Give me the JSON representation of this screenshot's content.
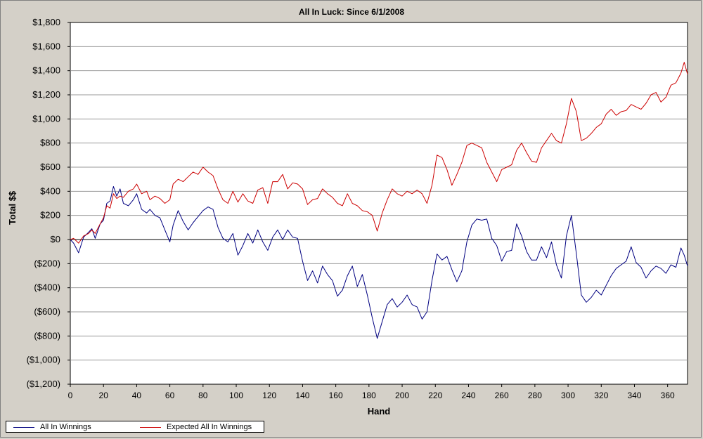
{
  "chart_data": {
    "type": "line",
    "title": "All In Luck: Since 6/1/2008",
    "xlabel": "Hand",
    "ylabel": "Total $$",
    "xlim": [
      0,
      372
    ],
    "ylim": [
      -1200,
      1800
    ],
    "x_ticks": [
      0,
      20,
      40,
      60,
      80,
      100,
      120,
      140,
      160,
      180,
      200,
      220,
      240,
      260,
      280,
      300,
      320,
      340,
      360
    ],
    "y_ticks": [
      1800,
      1600,
      1400,
      1200,
      1000,
      800,
      600,
      400,
      200,
      0,
      -200,
      -400,
      -600,
      -800,
      -1000,
      -1200
    ],
    "y_tick_labels": [
      "$1,800",
      "$1,600",
      "$1,400",
      "$1,200",
      "$1,000",
      "$800",
      "$600",
      "$400",
      "$200",
      "$0",
      "($200)",
      "($400)",
      "($600)",
      "($800)",
      "($1,000)",
      "($1,200)"
    ],
    "grid": true,
    "legend_position": "bottom-left",
    "series": [
      {
        "name": "All In Winnings",
        "color": "#000080",
        "x": [
          0,
          2,
          5,
          8,
          11,
          13,
          15,
          18,
          20,
          22,
          24,
          26,
          28,
          30,
          32,
          35,
          38,
          40,
          43,
          46,
          48,
          51,
          54,
          57,
          60,
          62,
          65,
          68,
          71,
          74,
          77,
          80,
          83,
          86,
          89,
          92,
          95,
          98,
          101,
          104,
          107,
          110,
          113,
          116,
          119,
          122,
          125,
          128,
          131,
          134,
          137,
          140,
          143,
          146,
          149,
          152,
          155,
          158,
          161,
          164,
          167,
          170,
          173,
          176,
          179,
          182,
          185,
          188,
          191,
          194,
          197,
          200,
          203,
          206,
          209,
          212,
          215,
          218,
          221,
          224,
          227,
          230,
          233,
          236,
          239,
          242,
          245,
          248,
          251,
          254,
          257,
          260,
          263,
          266,
          269,
          272,
          275,
          278,
          281,
          284,
          287,
          290,
          293,
          296,
          299,
          302,
          305,
          308,
          311,
          314,
          317,
          320,
          323,
          326,
          329,
          332,
          335,
          338,
          341,
          344,
          347,
          350,
          353,
          356,
          359,
          362,
          365,
          368,
          370,
          372
        ],
        "y": [
          0,
          -30,
          -110,
          20,
          60,
          90,
          10,
          130,
          160,
          300,
          320,
          440,
          360,
          420,
          300,
          280,
          330,
          380,
          250,
          220,
          250,
          200,
          180,
          80,
          -20,
          120,
          240,
          150,
          80,
          140,
          190,
          240,
          270,
          250,
          100,
          10,
          -20,
          50,
          -130,
          -50,
          50,
          -30,
          80,
          -20,
          -90,
          20,
          80,
          0,
          80,
          20,
          10,
          -180,
          -340,
          -260,
          -360,
          -220,
          -290,
          -340,
          -470,
          -420,
          -300,
          -220,
          -390,
          -290,
          -460,
          -650,
          -820,
          -680,
          -540,
          -490,
          -560,
          -520,
          -460,
          -540,
          -560,
          -660,
          -600,
          -340,
          -120,
          -170,
          -140,
          -250,
          -350,
          -260,
          -20,
          120,
          170,
          160,
          170,
          10,
          -50,
          -180,
          -100,
          -90,
          130,
          30,
          -100,
          -170,
          -170,
          -60,
          -150,
          -20,
          -210,
          -320,
          30,
          200,
          -120,
          -460,
          -520,
          -480,
          -420,
          -460,
          -380,
          -300,
          -240,
          -210,
          -180,
          -60,
          -190,
          -230,
          -320,
          -260,
          -220,
          -240,
          -280,
          -210,
          -230,
          -70,
          -130,
          -220
        ]
      },
      {
        "name": "Expected All In Winnings",
        "color": "#cc0000",
        "x": [
          0,
          2,
          5,
          8,
          11,
          13,
          15,
          18,
          20,
          22,
          24,
          26,
          28,
          30,
          32,
          35,
          38,
          40,
          43,
          46,
          48,
          51,
          54,
          57,
          60,
          62,
          65,
          68,
          71,
          74,
          77,
          80,
          83,
          86,
          89,
          92,
          95,
          98,
          101,
          104,
          107,
          110,
          113,
          116,
          119,
          122,
          125,
          128,
          131,
          134,
          137,
          140,
          143,
          146,
          149,
          152,
          155,
          158,
          161,
          164,
          167,
          170,
          173,
          176,
          179,
          182,
          185,
          188,
          191,
          194,
          197,
          200,
          203,
          206,
          209,
          212,
          215,
          218,
          221,
          224,
          227,
          230,
          233,
          236,
          239,
          242,
          245,
          248,
          251,
          254,
          257,
          260,
          263,
          266,
          269,
          272,
          275,
          278,
          281,
          284,
          287,
          290,
          293,
          296,
          299,
          302,
          305,
          308,
          311,
          314,
          317,
          320,
          323,
          326,
          329,
          332,
          335,
          338,
          341,
          344,
          347,
          350,
          353,
          356,
          359,
          362,
          365,
          368,
          370,
          372
        ],
        "y": [
          0,
          10,
          -30,
          30,
          50,
          80,
          50,
          130,
          180,
          280,
          260,
          380,
          340,
          360,
          350,
          400,
          420,
          460,
          380,
          400,
          330,
          360,
          340,
          300,
          330,
          460,
          500,
          480,
          520,
          560,
          540,
          600,
          560,
          530,
          420,
          330,
          300,
          400,
          310,
          380,
          320,
          300,
          410,
          430,
          300,
          480,
          480,
          540,
          420,
          470,
          460,
          420,
          290,
          330,
          340,
          420,
          380,
          350,
          300,
          280,
          380,
          300,
          280,
          240,
          230,
          200,
          70,
          220,
          330,
          420,
          380,
          360,
          400,
          380,
          410,
          380,
          300,
          450,
          700,
          680,
          580,
          450,
          540,
          640,
          780,
          800,
          780,
          760,
          640,
          560,
          480,
          580,
          600,
          620,
          740,
          800,
          720,
          650,
          640,
          760,
          820,
          880,
          820,
          800,
          960,
          1170,
          1060,
          820,
          840,
          880,
          930,
          960,
          1040,
          1080,
          1030,
          1060,
          1070,
          1120,
          1100,
          1080,
          1130,
          1200,
          1220,
          1140,
          1180,
          1280,
          1300,
          1380,
          1470,
          1370
        ]
      }
    ]
  }
}
